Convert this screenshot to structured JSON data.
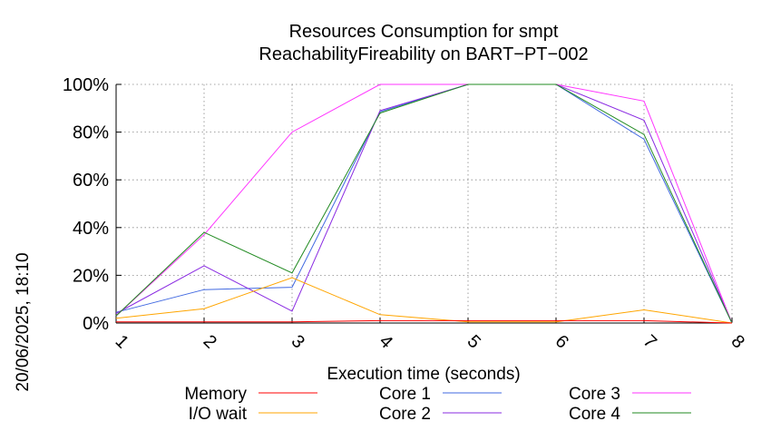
{
  "chart_data": {
    "type": "line",
    "title": "Resources Consumption for smpt",
    "subtitle": "ReachabilityFireability on BART−PT−002",
    "xlabel": "Execution time (seconds)",
    "ylabel": "",
    "side_label": "20/06/2025, 18:10",
    "x": [
      1,
      2,
      3,
      4,
      5,
      6,
      7,
      8
    ],
    "x_tick_labels": [
      "1",
      "2",
      "3",
      "4",
      "5",
      "6",
      "7",
      "8"
    ],
    "xlim": [
      1,
      8
    ],
    "ylim": [
      0,
      100
    ],
    "y_ticks": [
      0,
      20,
      40,
      60,
      80,
      100
    ],
    "y_tick_labels": [
      "0%",
      "20%",
      "40%",
      "60%",
      "80%",
      "100%"
    ],
    "grid": true,
    "legend_placement": "bottom",
    "series": [
      {
        "name": "Memory",
        "color": "#ff0000",
        "values": [
          0.5,
          0.5,
          0.5,
          1.0,
          1.0,
          1.0,
          1.0,
          0
        ]
      },
      {
        "name": "I/O wait",
        "color": "#ffa500",
        "values": [
          2,
          6,
          19,
          3.5,
          0.5,
          0.5,
          5.5,
          0
        ]
      },
      {
        "name": "Core 1",
        "color": "#4169e1",
        "values": [
          4.5,
          14,
          15,
          88.5,
          100,
          100,
          77,
          0
        ]
      },
      {
        "name": "Core 2",
        "color": "#8a2be2",
        "values": [
          4,
          24,
          5,
          89,
          100,
          100,
          85,
          0
        ]
      },
      {
        "name": "Core 3",
        "color": "#ff33ff",
        "values": [
          3,
          37,
          80,
          100,
          100,
          100,
          93,
          0
        ]
      },
      {
        "name": "Core 4",
        "color": "#228b22",
        "values": [
          3,
          38,
          21,
          88,
          100,
          100,
          79,
          0
        ]
      }
    ]
  }
}
